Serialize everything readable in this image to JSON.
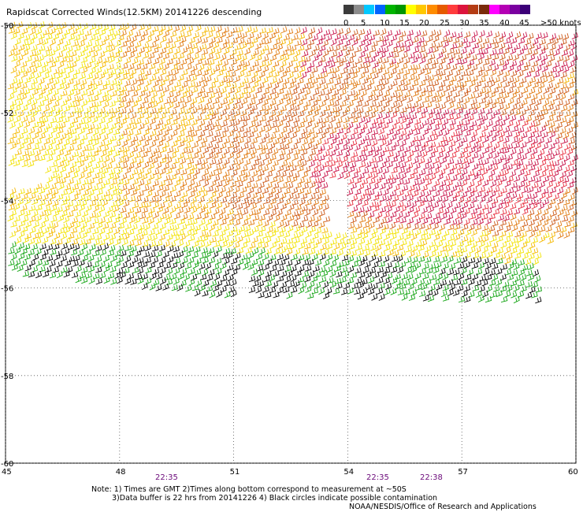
{
  "title": "Rapidscat Corrected Winds(12.5KM) 20141226 descending",
  "legend": {
    "labels": [
      "0",
      "5",
      "10",
      "15",
      "20",
      "25",
      "30",
      "35",
      "40",
      "45",
      ">50 knots"
    ],
    "colors": [
      "#3b3b3b",
      "#8c8c8c",
      "#00c8ff",
      "#0064ff",
      "#00b400",
      "#009600",
      "#ffff00",
      "#ffc800",
      "#ff8c00",
      "#e65a00",
      "#ff3c3c",
      "#dc143c",
      "#b43c14",
      "#7a2a0a",
      "#ff00ff",
      "#b400b4",
      "#7a00a0",
      "#3c0078"
    ]
  },
  "map": {
    "x_ticks": [
      "45",
      "48",
      "51",
      "54",
      "57",
      "60"
    ],
    "y_ticks": [
      "-50",
      "-52",
      "-54",
      "-56",
      "-58",
      "-60"
    ],
    "time_labels": [
      "22:35",
      "22:35",
      "22:38"
    ],
    "lon_range": [
      45,
      60
    ],
    "lat_range": [
      -60,
      -50
    ]
  },
  "notes": {
    "line1": "Note: 1) Times are GMT 2)Times along bottom correspond to measurement at ~50S",
    "line2": "3)Data buffer is 22 hrs from 20141226 4) Black circles indicate possible contamination",
    "credit": "NOAA/NESDIS/Office of Research and Applications"
  }
}
